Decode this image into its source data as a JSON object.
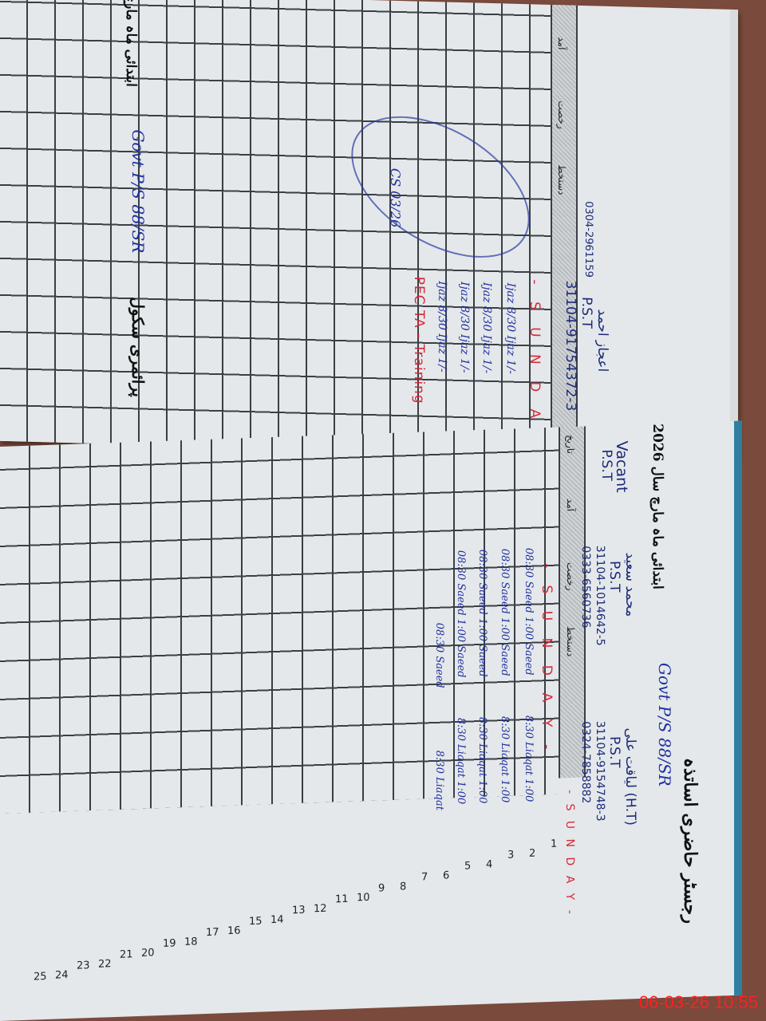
{
  "timestamp": "06-03-26  10:55",
  "upper_page": {
    "header_month": "ابتدائی ماہ مارچ",
    "school": "Govt P/S 88/SR",
    "title": "پرائمری سکول",
    "teacher": {
      "name": "اعجاز احمد",
      "designation": "P.S.T",
      "cnic": "31104-91754372-3",
      "phone": "0304-2961159"
    },
    "column_labels": [
      "آمد",
      "رخصت",
      "دستخط"
    ],
    "sunday": "- S U N D A Y -",
    "entries": [
      "Ijaz 8/30  Ijaz 1/-",
      "Ijaz 8/30  Ijaz 1/-",
      "Ijaz 8/30  Ijaz 1/-",
      "Ijaz 8/30  Ijaz 1/-"
    ],
    "note": "PEC TA - Training",
    "signature": "CS 03/26"
  },
  "lower_page": {
    "header_month": "ابتدائی ماہ مارچ سال 2026",
    "school": "Govt P/S 88/SR",
    "title": "رجسٹر حاضری اساتذہ",
    "teachers": [
      {
        "name": "لیاقت علی (H.T)",
        "designation": "P.S.T",
        "cnic": "31104-9154748-3",
        "phone": "0324-7858882",
        "entries": [
          "8:30  Liaqat  1:00",
          "8:30  Liaqat  1:00",
          "8:30  Liaqat  1:00",
          "8:30  Liaqat  1:00",
          "8:30  Liaqat"
        ]
      },
      {
        "name": "محمد سعید",
        "designation": "P.S.T",
        "cnic": "31104-1014642-5",
        "phone": "0333-6560736",
        "entries": [
          "08:30  Saeed  1:00  Saeed",
          "08:30  Saeed  1:00  Saeed",
          "08:30  Saeed  1:00  Saeed",
          "08:30  Saeed  1:00  Saeed",
          "08:30  Saeed"
        ]
      },
      {
        "name": "Vacant",
        "designation": "P.S.T"
      }
    ],
    "column_labels": [
      "تاریخ",
      "آمد",
      "رخصت",
      "دستخط"
    ],
    "sunday": "- S U N D A Y -",
    "row_numbers": [
      "1",
      "2",
      "3",
      "4",
      "5",
      "6",
      "7",
      "8",
      "9",
      "10",
      "11",
      "12",
      "13",
      "14",
      "15",
      "16",
      "17",
      "18",
      "19",
      "20",
      "21",
      "22",
      "23",
      "24",
      "25"
    ]
  }
}
